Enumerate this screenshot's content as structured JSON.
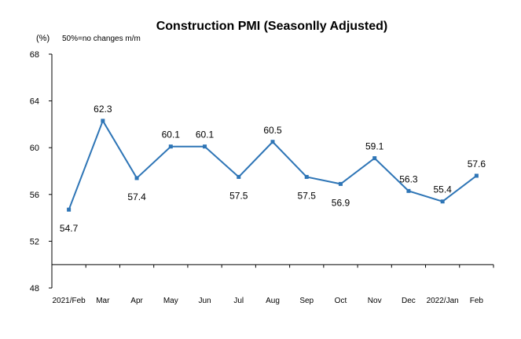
{
  "chart_data": {
    "type": "line",
    "title": "Construction PMI (Seasonlly Adjusted)",
    "ylabel": "(%)",
    "note": "50%=no changes  m/m",
    "xlabel": "",
    "ylim": [
      48,
      68
    ],
    "yticks": [
      48,
      52,
      56,
      60,
      64,
      68
    ],
    "reference_line": 50,
    "categories": [
      "2021/Feb",
      "Mar",
      "Apr",
      "May",
      "Jun",
      "Jul",
      "Aug",
      "Sep",
      "Oct",
      "Nov",
      "Dec",
      "2022/Jan",
      "Feb"
    ],
    "series": [
      {
        "values": [
          54.7,
          62.3,
          57.4,
          60.1,
          60.1,
          57.5,
          60.5,
          57.5,
          56.9,
          59.1,
          56.3,
          55.4,
          57.6
        ],
        "labels": [
          "54.7",
          "62.3",
          "57.4",
          "60.1",
          "60.1",
          "57.5",
          "60.5",
          "57.5",
          "56.9",
          "59.1",
          "56.3",
          "55.4",
          "57.6"
        ],
        "label_positions": [
          "below",
          "above",
          "below",
          "above",
          "above",
          "below",
          "above",
          "below",
          "below",
          "above",
          "above",
          "above",
          "above"
        ]
      }
    ],
    "colors": {
      "line": "#2E75B6",
      "axis": "#000000"
    },
    "grid": false,
    "legend": "none"
  }
}
